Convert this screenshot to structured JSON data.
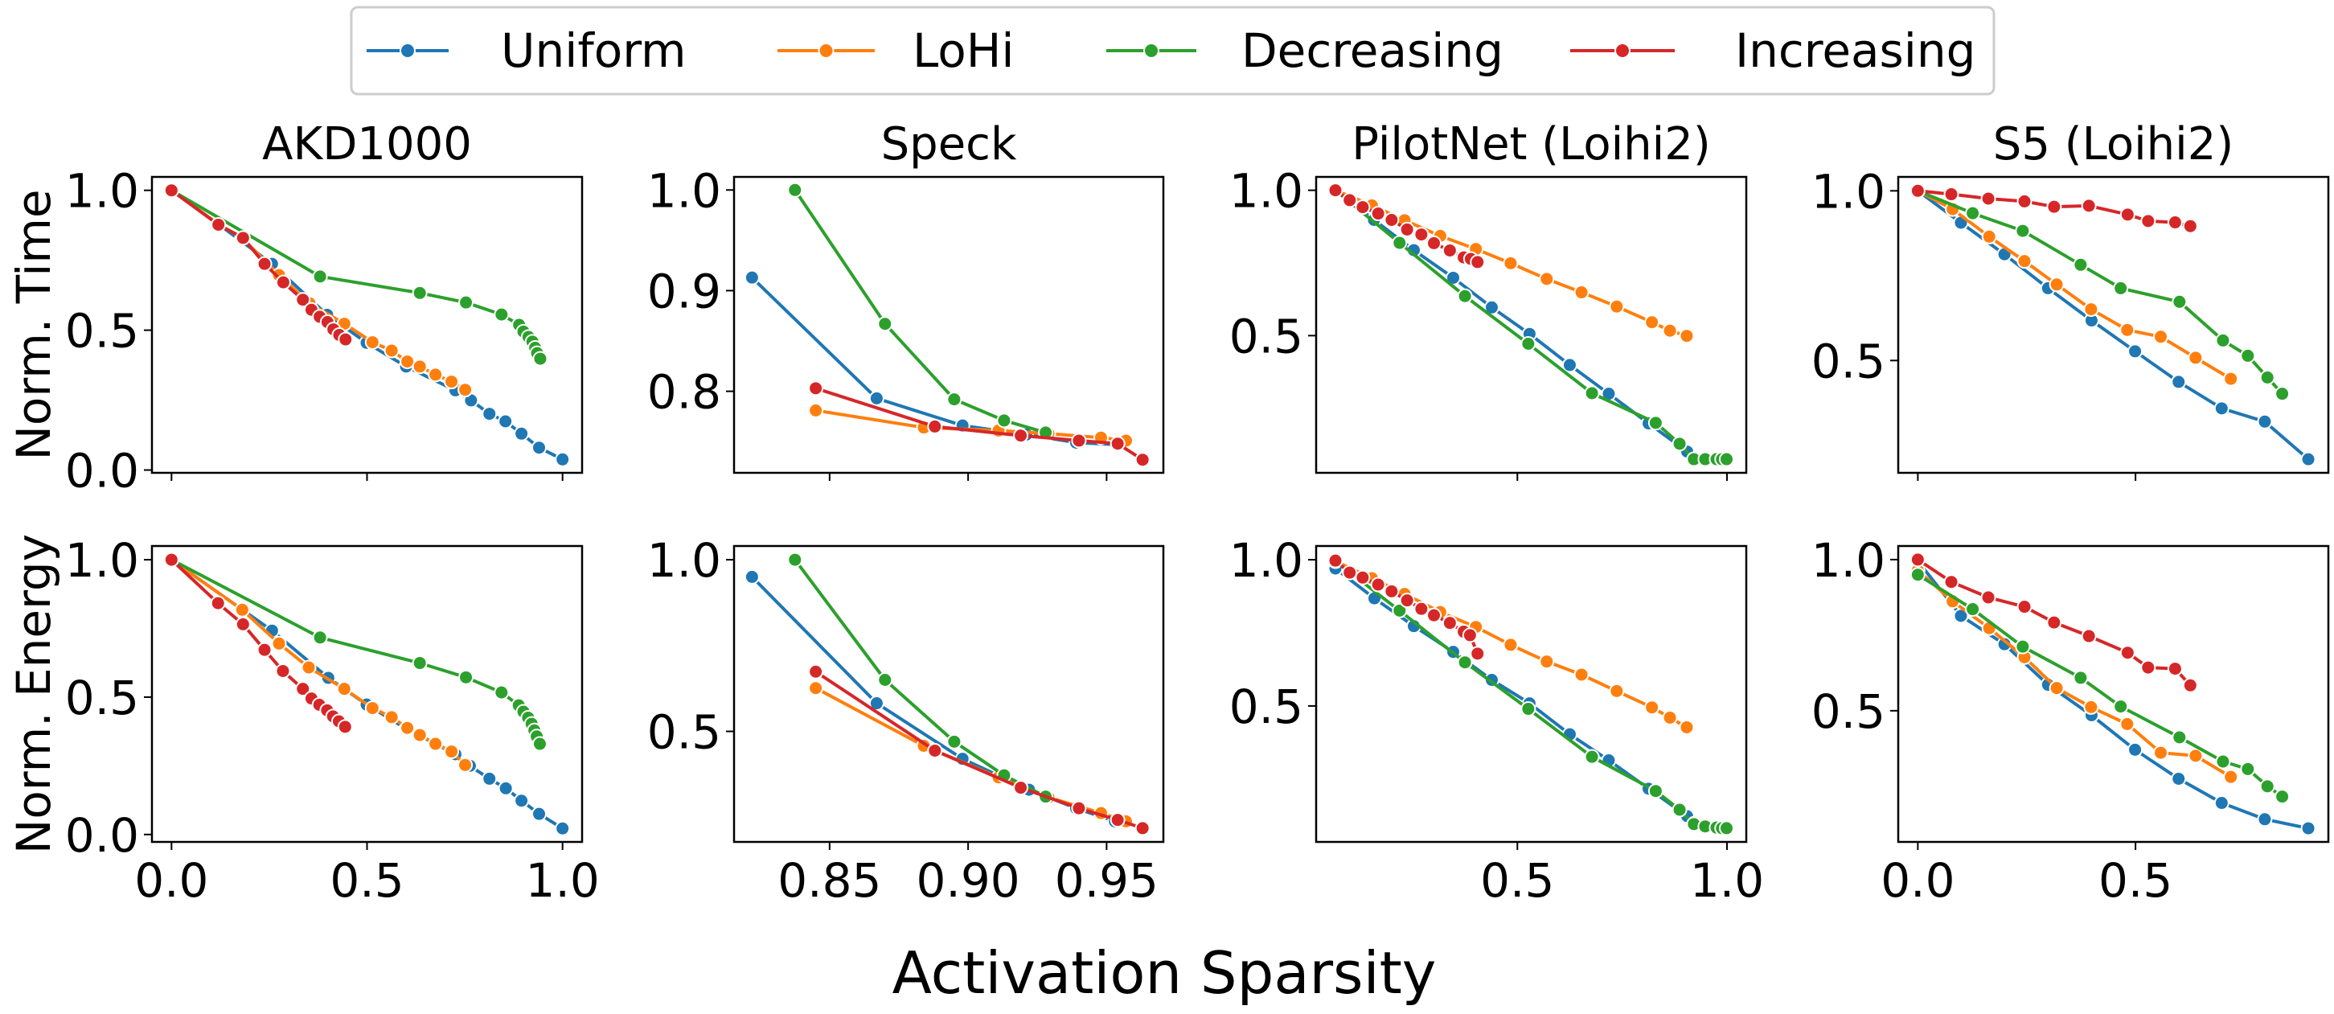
{
  "legend": {
    "entries": [
      {
        "name": "Uniform",
        "color": "#1f77b4"
      },
      {
        "name": "LoHi",
        "color": "#ff7f0e"
      },
      {
        "name": "Decreasing",
        "color": "#2ca02c"
      },
      {
        "name": "Increasing",
        "color": "#d62728"
      }
    ]
  },
  "xlabel": "Activation Sparsity",
  "chart_data": [
    {
      "type": "line",
      "title": "AKD1000",
      "ylabel": "Norm. Time",
      "row": 0,
      "col": 0,
      "xlim": [
        -0.05,
        1.05
      ],
      "ylim": [
        -0.01,
        1.048
      ],
      "xticks": [
        "0.0",
        "0.5",
        "1.0"
      ],
      "xtick_values": [
        0,
        0.5,
        1.0
      ],
      "show_xticklabels": false,
      "yticks": [
        "0.0",
        "0.5",
        "1.0"
      ],
      "ytick_values": [
        0,
        0.5,
        1.0
      ],
      "series": [
        {
          "name": "Uniform",
          "x": [
            0,
            0.12,
            0.257,
            0.398,
            0.499,
            0.6,
            0.726,
            0.766,
            0.813,
            0.854,
            0.895,
            0.94,
            1.0
          ],
          "y": [
            1,
            0.879,
            0.737,
            0.555,
            0.455,
            0.37,
            0.285,
            0.249,
            0.201,
            0.174,
            0.13,
            0.08,
            0.038
          ]
        },
        {
          "name": "LoHi",
          "x": [
            0,
            0.12,
            0.18,
            0.275,
            0.353,
            0.442,
            0.514,
            0.563,
            0.603,
            0.635,
            0.675,
            0.716,
            0.751
          ],
          "y": [
            1,
            0.879,
            0.83,
            0.697,
            0.596,
            0.523,
            0.457,
            0.427,
            0.388,
            0.37,
            0.341,
            0.316,
            0.287
          ]
        },
        {
          "name": "Decreasing",
          "x": [
            0,
            0.38,
            0.635,
            0.753,
            0.844,
            0.889,
            0.9,
            0.913,
            0.923,
            0.93,
            0.935,
            0.943
          ],
          "y": [
            1,
            0.692,
            0.633,
            0.599,
            0.556,
            0.519,
            0.495,
            0.476,
            0.459,
            0.437,
            0.418,
            0.398
          ]
        },
        {
          "name": "Increasing",
          "x": [
            0,
            0.12,
            0.183,
            0.238,
            0.286,
            0.336,
            0.358,
            0.379,
            0.399,
            0.414,
            0.429,
            0.445
          ],
          "y": [
            1,
            0.877,
            0.83,
            0.737,
            0.671,
            0.609,
            0.573,
            0.548,
            0.529,
            0.503,
            0.483,
            0.467
          ]
        }
      ]
    },
    {
      "type": "line",
      "title": "Speck",
      "ylabel": "",
      "row": 0,
      "col": 1,
      "xlim": [
        0.8155,
        0.9705
      ],
      "ylim": [
        0.719,
        1.013
      ],
      "xticks": [
        "0.85",
        "0.90",
        "0.95"
      ],
      "xtick_values": [
        0.85,
        0.9,
        0.95
      ],
      "show_xticklabels": false,
      "yticks": [
        "0.8",
        "0.9",
        "1.0"
      ],
      "ytick_values": [
        0.8,
        0.9,
        1.0
      ],
      "series": [
        {
          "name": "Uniform",
          "x": [
            0.822,
            0.867,
            0.898,
            0.921,
            0.939,
            0.954
          ],
          "y": [
            0.913,
            0.793,
            0.766,
            0.757,
            0.749,
            0.747
          ]
        },
        {
          "name": "LoHi",
          "x": [
            0.845,
            0.884,
            0.911,
            0.929,
            0.948,
            0.957
          ],
          "y": [
            0.781,
            0.764,
            0.761,
            0.758,
            0.754,
            0.751
          ]
        },
        {
          "name": "Decreasing",
          "x": [
            0.8375,
            0.87,
            0.895,
            0.913,
            0.928
          ],
          "y": [
            1.0,
            0.867,
            0.792,
            0.771,
            0.759
          ]
        },
        {
          "name": "Increasing",
          "x": [
            0.845,
            0.888,
            0.919,
            0.94,
            0.954,
            0.963
          ],
          "y": [
            0.803,
            0.765,
            0.756,
            0.751,
            0.748,
            0.732
          ]
        }
      ]
    },
    {
      "type": "line",
      "title": "PilotNet (Loihi2)",
      "ylabel": "",
      "row": 0,
      "col": 2,
      "xlim": [
        0.02,
        1.046
      ],
      "ylim": [
        0.028,
        1.046
      ],
      "xticks": [
        "0.5",
        "1.0"
      ],
      "xtick_values": [
        0.5,
        1.0
      ],
      "show_xticklabels": false,
      "yticks": [
        "0.5",
        "1.0"
      ],
      "ytick_values": [
        0.5,
        1.0
      ],
      "series": [
        {
          "name": "Uniform",
          "x": [
            0.066,
            0.158,
            0.253,
            0.347,
            0.439,
            0.529,
            0.625,
            0.718,
            0.813,
            0.905,
            0.922
          ],
          "y": [
            1,
            0.898,
            0.794,
            0.699,
            0.597,
            0.506,
            0.399,
            0.3,
            0.198,
            0.101,
            0.075
          ]
        },
        {
          "name": "LoHi",
          "x": [
            0.066,
            0.153,
            0.231,
            0.316,
            0.401,
            0.484,
            0.57,
            0.653,
            0.737,
            0.821,
            0.864,
            0.904
          ],
          "y": [
            1,
            0.948,
            0.897,
            0.843,
            0.798,
            0.749,
            0.695,
            0.649,
            0.6,
            0.546,
            0.517,
            0.499
          ]
        },
        {
          "name": "Decreasing",
          "x": [
            0.066,
            0.219,
            0.375,
            0.526,
            0.678,
            0.83,
            0.887,
            0.921,
            0.948,
            0.975,
            0.988,
            0.999
          ],
          "y": [
            1,
            0.819,
            0.636,
            0.472,
            0.302,
            0.2,
            0.128,
            0.075,
            0.075,
            0.075,
            0.075,
            0.075
          ]
        },
        {
          "name": "Increasing",
          "x": [
            0.066,
            0.1,
            0.131,
            0.168,
            0.2,
            0.237,
            0.271,
            0.301,
            0.339,
            0.372,
            0.389,
            0.405
          ],
          "y": [
            1,
            0.966,
            0.942,
            0.92,
            0.898,
            0.865,
            0.848,
            0.818,
            0.793,
            0.769,
            0.764,
            0.753
          ]
        }
      ]
    },
    {
      "type": "line",
      "title": "S5 (Loihi2)",
      "ylabel": "",
      "row": 0,
      "col": 3,
      "xlim": [
        -0.045,
        0.943
      ],
      "ylim": [
        0.169,
        1.041
      ],
      "xticks": [
        "0.0",
        "0.5"
      ],
      "xtick_values": [
        0,
        0.5
      ],
      "show_xticklabels": false,
      "yticks": [
        "0.5",
        "1.0"
      ],
      "ytick_values": [
        0.5,
        1.0
      ],
      "series": [
        {
          "name": "Uniform",
          "x": [
            0,
            0.099,
            0.199,
            0.299,
            0.399,
            0.499,
            0.599,
            0.698,
            0.797,
            0.897
          ],
          "y": [
            1,
            0.906,
            0.813,
            0.713,
            0.618,
            0.527,
            0.437,
            0.359,
            0.32,
            0.209
          ]
        },
        {
          "name": "LoHi",
          "x": [
            0,
            0.08,
            0.164,
            0.245,
            0.319,
            0.398,
            0.481,
            0.558,
            0.638,
            0.719
          ],
          "y": [
            1,
            0.946,
            0.865,
            0.793,
            0.724,
            0.651,
            0.59,
            0.57,
            0.508,
            0.446
          ]
        },
        {
          "name": "Decreasing",
          "x": [
            0,
            0.126,
            0.241,
            0.374,
            0.466,
            0.601,
            0.701,
            0.758,
            0.803,
            0.837
          ],
          "y": [
            1,
            0.934,
            0.882,
            0.782,
            0.713,
            0.673,
            0.559,
            0.514,
            0.45,
            0.402
          ]
        },
        {
          "name": "Increasing",
          "x": [
            0,
            0.077,
            0.162,
            0.245,
            0.313,
            0.393,
            0.482,
            0.529,
            0.591,
            0.626
          ],
          "y": [
            1,
            0.99,
            0.977,
            0.969,
            0.953,
            0.956,
            0.93,
            0.911,
            0.907,
            0.896
          ]
        }
      ]
    },
    {
      "type": "line",
      "title": "",
      "ylabel": "Norm. Energy",
      "row": 1,
      "col": 0,
      "xlim": [
        -0.05,
        1.05
      ],
      "ylim": [
        -0.027,
        1.05
      ],
      "xticks": [
        "0.0",
        "0.5",
        "1.0"
      ],
      "xtick_values": [
        0,
        0.5,
        1.0
      ],
      "show_xticklabels": true,
      "yticks": [
        "0.0",
        "0.5",
        "1.0"
      ],
      "ytick_values": [
        0,
        0.5,
        1.0
      ],
      "series": [
        {
          "name": "Uniform",
          "x": [
            0,
            0.257,
            0.401,
            0.499,
            0.6,
            0.726,
            0.763,
            0.813,
            0.855,
            0.895,
            0.94,
            1.0
          ],
          "y": [
            1,
            0.742,
            0.57,
            0.473,
            0.385,
            0.292,
            0.25,
            0.203,
            0.168,
            0.123,
            0.075,
            0.022
          ]
        },
        {
          "name": "LoHi",
          "x": [
            0,
            0.181,
            0.275,
            0.351,
            0.442,
            0.514,
            0.563,
            0.603,
            0.635,
            0.675,
            0.716,
            0.751
          ],
          "y": [
            1,
            0.818,
            0.695,
            0.608,
            0.53,
            0.46,
            0.427,
            0.388,
            0.362,
            0.33,
            0.302,
            0.253
          ]
        },
        {
          "name": "Decreasing",
          "x": [
            0,
            0.38,
            0.635,
            0.753,
            0.844,
            0.888,
            0.9,
            0.912,
            0.921,
            0.928,
            0.934,
            0.942
          ],
          "y": [
            1,
            0.717,
            0.624,
            0.572,
            0.517,
            0.47,
            0.447,
            0.425,
            0.403,
            0.379,
            0.357,
            0.33
          ]
        },
        {
          "name": "Increasing",
          "x": [
            0,
            0.119,
            0.183,
            0.238,
            0.285,
            0.336,
            0.358,
            0.378,
            0.398,
            0.413,
            0.428,
            0.444
          ],
          "y": [
            1,
            0.842,
            0.765,
            0.672,
            0.595,
            0.53,
            0.495,
            0.472,
            0.452,
            0.43,
            0.412,
            0.392
          ]
        }
      ]
    },
    {
      "type": "line",
      "title": "",
      "ylabel": "",
      "row": 1,
      "col": 1,
      "xlim": [
        0.8155,
        0.9705
      ],
      "ylim": [
        0.178,
        1.04
      ],
      "xticks": [
        "0.85",
        "0.90",
        "0.95"
      ],
      "xtick_values": [
        0.85,
        0.9,
        0.95
      ],
      "show_xticklabels": true,
      "yticks": [
        "0.5",
        "1.0"
      ],
      "ytick_values": [
        0.5,
        1.0
      ],
      "series": [
        {
          "name": "Uniform",
          "x": [
            0.822,
            0.867,
            0.898,
            0.922,
            0.939,
            0.953
          ],
          "y": [
            0.95,
            0.582,
            0.42,
            0.33,
            0.276,
            0.238
          ]
        },
        {
          "name": "LoHi",
          "x": [
            0.845,
            0.884,
            0.911,
            0.929,
            0.948,
            0.957
          ],
          "y": [
            0.626,
            0.458,
            0.366,
            0.308,
            0.262,
            0.238
          ]
        },
        {
          "name": "Decreasing",
          "x": [
            0.8375,
            0.87,
            0.895,
            0.913,
            0.928
          ],
          "y": [
            1.0,
            0.65,
            0.47,
            0.372,
            0.31
          ]
        },
        {
          "name": "Increasing",
          "x": [
            0.845,
            0.888,
            0.919,
            0.94,
            0.954,
            0.963
          ],
          "y": [
            0.674,
            0.444,
            0.336,
            0.276,
            0.242,
            0.218
          ]
        }
      ]
    },
    {
      "type": "line",
      "title": "",
      "ylabel": "",
      "row": 1,
      "col": 2,
      "xlim": [
        0.02,
        1.046
      ],
      "ylim": [
        0.035,
        1.047
      ],
      "xticks": [
        "0.5",
        "1.0"
      ],
      "xtick_values": [
        0.5,
        1.0
      ],
      "show_xticklabels": true,
      "yticks": [
        "0.5",
        "1.0"
      ],
      "ytick_values": [
        0.5,
        1.0
      ],
      "series": [
        {
          "name": "Uniform",
          "x": [
            0.066,
            0.159,
            0.253,
            0.347,
            0.439,
            0.529,
            0.625,
            0.718,
            0.813,
            0.905,
            0.922
          ],
          "y": [
            0.97,
            0.868,
            0.773,
            0.685,
            0.589,
            0.509,
            0.403,
            0.314,
            0.217,
            0.123,
            0.098
          ]
        },
        {
          "name": "LoHi",
          "x": [
            0.066,
            0.153,
            0.231,
            0.316,
            0.401,
            0.484,
            0.57,
            0.653,
            0.737,
            0.821,
            0.864,
            0.904
          ],
          "y": [
            0.995,
            0.937,
            0.883,
            0.821,
            0.77,
            0.709,
            0.652,
            0.607,
            0.551,
            0.495,
            0.46,
            0.427
          ]
        },
        {
          "name": "Decreasing",
          "x": [
            0.066,
            0.219,
            0.375,
            0.526,
            0.678,
            0.83,
            0.887,
            0.921,
            0.948,
            0.975,
            0.988,
            0.999
          ],
          "y": [
            0.995,
            0.826,
            0.649,
            0.49,
            0.326,
            0.209,
            0.145,
            0.096,
            0.088,
            0.084,
            0.082,
            0.082
          ]
        },
        {
          "name": "Increasing",
          "x": [
            0.066,
            0.1,
            0.131,
            0.168,
            0.2,
            0.237,
            0.271,
            0.301,
            0.339,
            0.372,
            0.387,
            0.405
          ],
          "y": [
            0.997,
            0.956,
            0.939,
            0.915,
            0.892,
            0.861,
            0.832,
            0.81,
            0.784,
            0.754,
            0.742,
            0.679
          ]
        }
      ]
    },
    {
      "type": "line",
      "title": "",
      "ylabel": "",
      "row": 1,
      "col": 3,
      "xlim": [
        -0.045,
        0.943
      ],
      "ylim": [
        0.066,
        1.045
      ],
      "xticks": [
        "0.0",
        "0.5"
      ],
      "xtick_values": [
        0,
        0.5
      ],
      "show_xticklabels": true,
      "yticks": [
        "0.5",
        "1.0"
      ],
      "ytick_values": [
        0.5,
        1.0
      ],
      "series": [
        {
          "name": "Uniform",
          "x": [
            0,
            0.099,
            0.199,
            0.299,
            0.399,
            0.499,
            0.599,
            0.698,
            0.797,
            0.897
          ],
          "y": [
            0.995,
            0.814,
            0.72,
            0.586,
            0.485,
            0.371,
            0.275,
            0.195,
            0.141,
            0.111
          ]
        },
        {
          "name": "LoHi",
          "x": [
            0,
            0.08,
            0.164,
            0.245,
            0.319,
            0.398,
            0.481,
            0.558,
            0.638,
            0.719
          ],
          "y": [
            0.964,
            0.862,
            0.773,
            0.677,
            0.575,
            0.512,
            0.456,
            0.361,
            0.351,
            0.281
          ]
        },
        {
          "name": "Decreasing",
          "x": [
            0,
            0.126,
            0.241,
            0.374,
            0.466,
            0.601,
            0.701,
            0.758,
            0.803,
            0.837
          ],
          "y": [
            0.95,
            0.836,
            0.712,
            0.609,
            0.514,
            0.412,
            0.332,
            0.307,
            0.25,
            0.216
          ]
        },
        {
          "name": "Increasing",
          "x": [
            0,
            0.077,
            0.162,
            0.245,
            0.313,
            0.393,
            0.482,
            0.529,
            0.591,
            0.626
          ],
          "y": [
            1,
            0.926,
            0.875,
            0.844,
            0.792,
            0.747,
            0.692,
            0.643,
            0.639,
            0.584
          ]
        }
      ]
    }
  ]
}
